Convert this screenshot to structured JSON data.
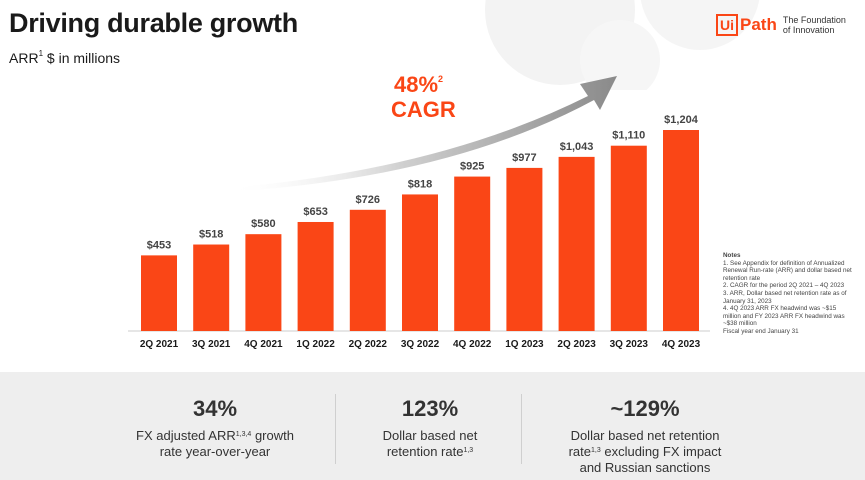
{
  "header": {
    "title": "Driving durable growth",
    "subtitle_main": "ARR",
    "subtitle_sup": "1",
    "subtitle_rest": " $ in millions"
  },
  "logo": {
    "ui": "Ui",
    "path": "Path",
    "tagline": "The Foundation of Innovation",
    "tagline_line1": "The Foundation",
    "tagline_line2": "of Innovation"
  },
  "colors": {
    "accent": "#fa4616",
    "arrow": "#8a8a8a",
    "axis_text": "#1a1a1a"
  },
  "cagr": {
    "value": "48%",
    "sup": "2",
    "label": "CAGR"
  },
  "chart_data": {
    "type": "bar",
    "title": "ARR $ in millions",
    "categories": [
      "2Q 2021",
      "3Q 2021",
      "4Q 2021",
      "1Q 2022",
      "2Q 2022",
      "3Q 2022",
      "4Q 2022",
      "1Q 2023",
      "2Q 2023",
      "3Q 2023",
      "4Q 2023"
    ],
    "values": [
      453,
      518,
      580,
      653,
      726,
      818,
      925,
      977,
      1043,
      1110,
      1204
    ],
    "data_labels": [
      "$453",
      "$518",
      "$580",
      "$653",
      "$726",
      "$818",
      "$925",
      "$977",
      "$1,043",
      "$1,110",
      "$1,204"
    ],
    "xlabel": "",
    "ylabel": "",
    "ylim": [
      0,
      1260
    ],
    "grid": false,
    "legend": "none"
  },
  "notes": {
    "heading": "Notes",
    "lines": [
      "1. See Appendix for definition of Annualized Renewal Run-rate (ARR) and dollar based net retention rate",
      "2. CAGR for the period 2Q 2021 – 4Q 2023",
      "3. ARR, Dollar based net retention rate as of January 31, 2023",
      "4. 4Q 2023 ARR FX headwind was ~$15 million and FY 2023 ARR FX headwind was ~$38 million",
      "Fiscal year end January 31"
    ]
  },
  "stats": [
    {
      "value": "34%",
      "line1_pre": "FX adjusted ARR",
      "line1_sup": "1,3,4",
      "line1_post": " growth",
      "line2": "rate year-over-year",
      "line2_sup": "",
      "line3": ""
    },
    {
      "value": "123%",
      "line1_pre": "Dollar based net",
      "line1_sup": "",
      "line1_post": "",
      "line2": "retention rate",
      "line2_sup": "1,3",
      "line3": ""
    },
    {
      "value": "~129%",
      "line1_pre": "Dollar based net retention",
      "line1_sup": "",
      "line1_post": "",
      "line2": "rate",
      "line2_sup": "1,3",
      "line2_post": " excluding FX impact",
      "line3": "and Russian sanctions"
    }
  ]
}
